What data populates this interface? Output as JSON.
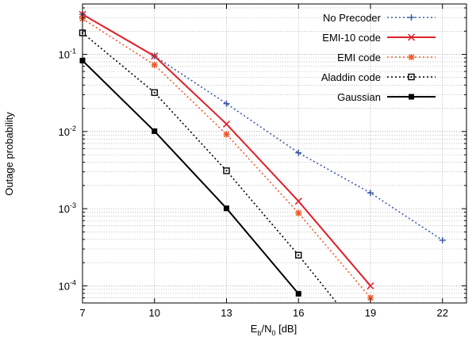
{
  "chart_data": {
    "type": "line",
    "title": "",
    "xlabel": {
      "main": "E",
      "sub1": "b",
      "mid": "/N",
      "sub2": "0",
      "tail": " [dB]"
    },
    "ylabel": "Outage probability",
    "x_scale": "linear",
    "y_scale": "log",
    "xlim": [
      7,
      23
    ],
    "ylim": [
      6e-05,
      0.45
    ],
    "grid": true,
    "legend_position": "top-right",
    "x_ticks": [
      {
        "value": 7,
        "label": "7"
      },
      {
        "value": 10,
        "label": "10"
      },
      {
        "value": 13,
        "label": "13"
      },
      {
        "value": 16,
        "label": "16"
      },
      {
        "value": 19,
        "label": "19"
      },
      {
        "value": 22,
        "label": "22"
      }
    ],
    "y_ticks": [
      {
        "value": 0.1,
        "base": "10",
        "exp": "-1"
      },
      {
        "value": 0.01,
        "base": "10",
        "exp": "-2"
      },
      {
        "value": 0.001,
        "base": "10",
        "exp": "-3"
      },
      {
        "value": 0.0001,
        "base": "10",
        "exp": "-4"
      }
    ],
    "series": [
      {
        "name": "No Precoder",
        "color": "#3a5ba8",
        "dash": "dotted",
        "marker": "plus",
        "x": [
          7,
          10,
          13,
          16,
          19,
          22
        ],
        "y": [
          0.33,
          0.095,
          0.023,
          0.0053,
          0.0016,
          0.00039
        ]
      },
      {
        "name": "EMI-10 code",
        "color": "#e0202a",
        "dash": "solid",
        "marker": "cross",
        "x": [
          7,
          10,
          13,
          16,
          19
        ],
        "y": [
          0.33,
          0.095,
          0.0125,
          0.00125,
          0.0001
        ]
      },
      {
        "name": "EMI code",
        "color": "#f05a28",
        "dash": "dotted",
        "marker": "star",
        "x": [
          7,
          10,
          13,
          16,
          19
        ],
        "y": [
          0.29,
          0.073,
          0.0092,
          0.00088,
          7e-05
        ]
      },
      {
        "name": "Aladdin code",
        "color": "#000000",
        "dash": "dotted",
        "marker": "open-square",
        "x": [
          7,
          10,
          13,
          16,
          17.6
        ],
        "y": [
          0.19,
          0.032,
          0.0031,
          0.00025,
          6e-05
        ],
        "marker_count": 4
      },
      {
        "name": "Gaussian",
        "color": "#000000",
        "dash": "solid",
        "marker": "filled-square",
        "x": [
          7,
          10,
          13,
          16
        ],
        "y": [
          0.083,
          0.0101,
          0.00101,
          7.9e-05
        ]
      }
    ]
  }
}
